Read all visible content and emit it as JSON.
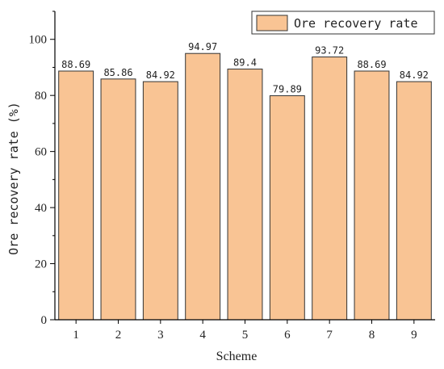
{
  "chart_data": {
    "type": "bar",
    "categories": [
      "1",
      "2",
      "3",
      "4",
      "5",
      "6",
      "7",
      "8",
      "9"
    ],
    "values": [
      88.69,
      85.86,
      84.92,
      94.97,
      89.4,
      79.89,
      93.72,
      88.69,
      84.92
    ],
    "data_labels": [
      "88.69",
      "85.86",
      "84.92",
      "94.97",
      "89.4",
      "79.89",
      "93.72",
      "88.69",
      "84.92"
    ],
    "series": [
      {
        "name": "Ore recovery rate"
      }
    ],
    "xlabel": "Scheme",
    "ylabel": "Ore recovery rate (%)",
    "ylim": [
      0,
      110
    ],
    "yticks": [
      0,
      20,
      40,
      60,
      80,
      100
    ],
    "grid": false,
    "legend_position": "top-right",
    "bar_color": "#F9C494",
    "edge_color": "#333333"
  }
}
